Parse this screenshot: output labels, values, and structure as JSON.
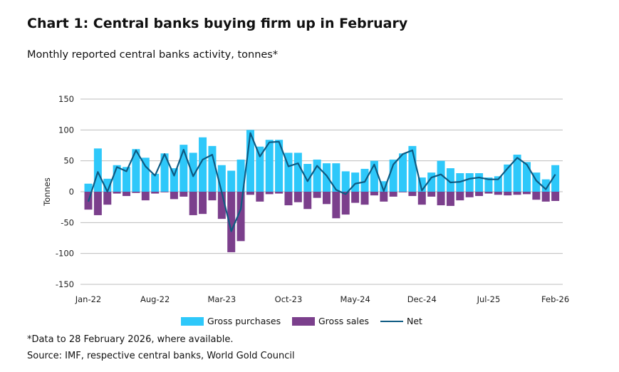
{
  "title": "Chart 1: Central banks buying firm up in February",
  "subtitle": "Monthly reported central banks activity, tonnes*",
  "footnote": "*Data to 28 February 2026, where available.",
  "source": "Source: IMF, respective central banks, World Gold Council",
  "colors": {
    "purchases": "#2ec8fa",
    "sales": "#7b3f8c",
    "net": "#0e5a82"
  },
  "chart_data": {
    "type": "bar",
    "ylabel": "Tonnes",
    "ylim": [
      -150,
      150
    ],
    "yticks": [
      150,
      100,
      50,
      0,
      -50,
      -100,
      -150
    ],
    "xtick_labels": [
      "Jan-22",
      "Aug-22",
      "Mar-23",
      "Oct-23",
      "May-24",
      "Dec-24",
      "Jul-25",
      "Feb-26"
    ],
    "grid": true,
    "legend": "bottom",
    "start": "Jan-22",
    "series": [
      {
        "name": "Gross purchases",
        "type": "bar",
        "values": [
          13,
          70,
          21,
          43,
          40,
          69,
          55,
          29,
          62,
          38,
          76,
          63,
          88,
          74,
          43,
          34,
          52,
          100,
          73,
          84,
          84,
          63,
          63,
          45,
          52,
          46,
          46,
          33,
          31,
          37,
          50,
          17,
          52,
          62,
          74,
          23,
          31,
          50,
          38,
          30,
          30,
          30,
          23,
          25,
          44,
          60,
          48,
          31,
          20,
          43
        ]
      },
      {
        "name": "Gross sales",
        "type": "bar",
        "values": [
          -29,
          -38,
          -21,
          -3,
          -7,
          -2,
          -14,
          -3,
          -1,
          -12,
          -8,
          -38,
          -36,
          -14,
          -44,
          -98,
          -80,
          -5,
          -16,
          -4,
          -3,
          -22,
          -17,
          -28,
          -10,
          -20,
          -43,
          -37,
          -18,
          -21,
          -6,
          -16,
          -8,
          -1,
          -7,
          -21,
          -8,
          -22,
          -23,
          -14,
          -9,
          -7,
          -3,
          -5,
          -6,
          -5,
          -4,
          -13,
          -16,
          -15
        ]
      },
      {
        "name": "Net",
        "type": "line",
        "values": [
          -16,
          32,
          0,
          40,
          33,
          67,
          41,
          26,
          61,
          26,
          68,
          25,
          52,
          60,
          -1,
          -64,
          -28,
          95,
          57,
          80,
          81,
          41,
          46,
          17,
          42,
          26,
          3,
          -4,
          13,
          16,
          44,
          1,
          44,
          61,
          67,
          2,
          23,
          28,
          15,
          16,
          21,
          23,
          20,
          20,
          38,
          55,
          44,
          18,
          4,
          28
        ]
      }
    ]
  }
}
